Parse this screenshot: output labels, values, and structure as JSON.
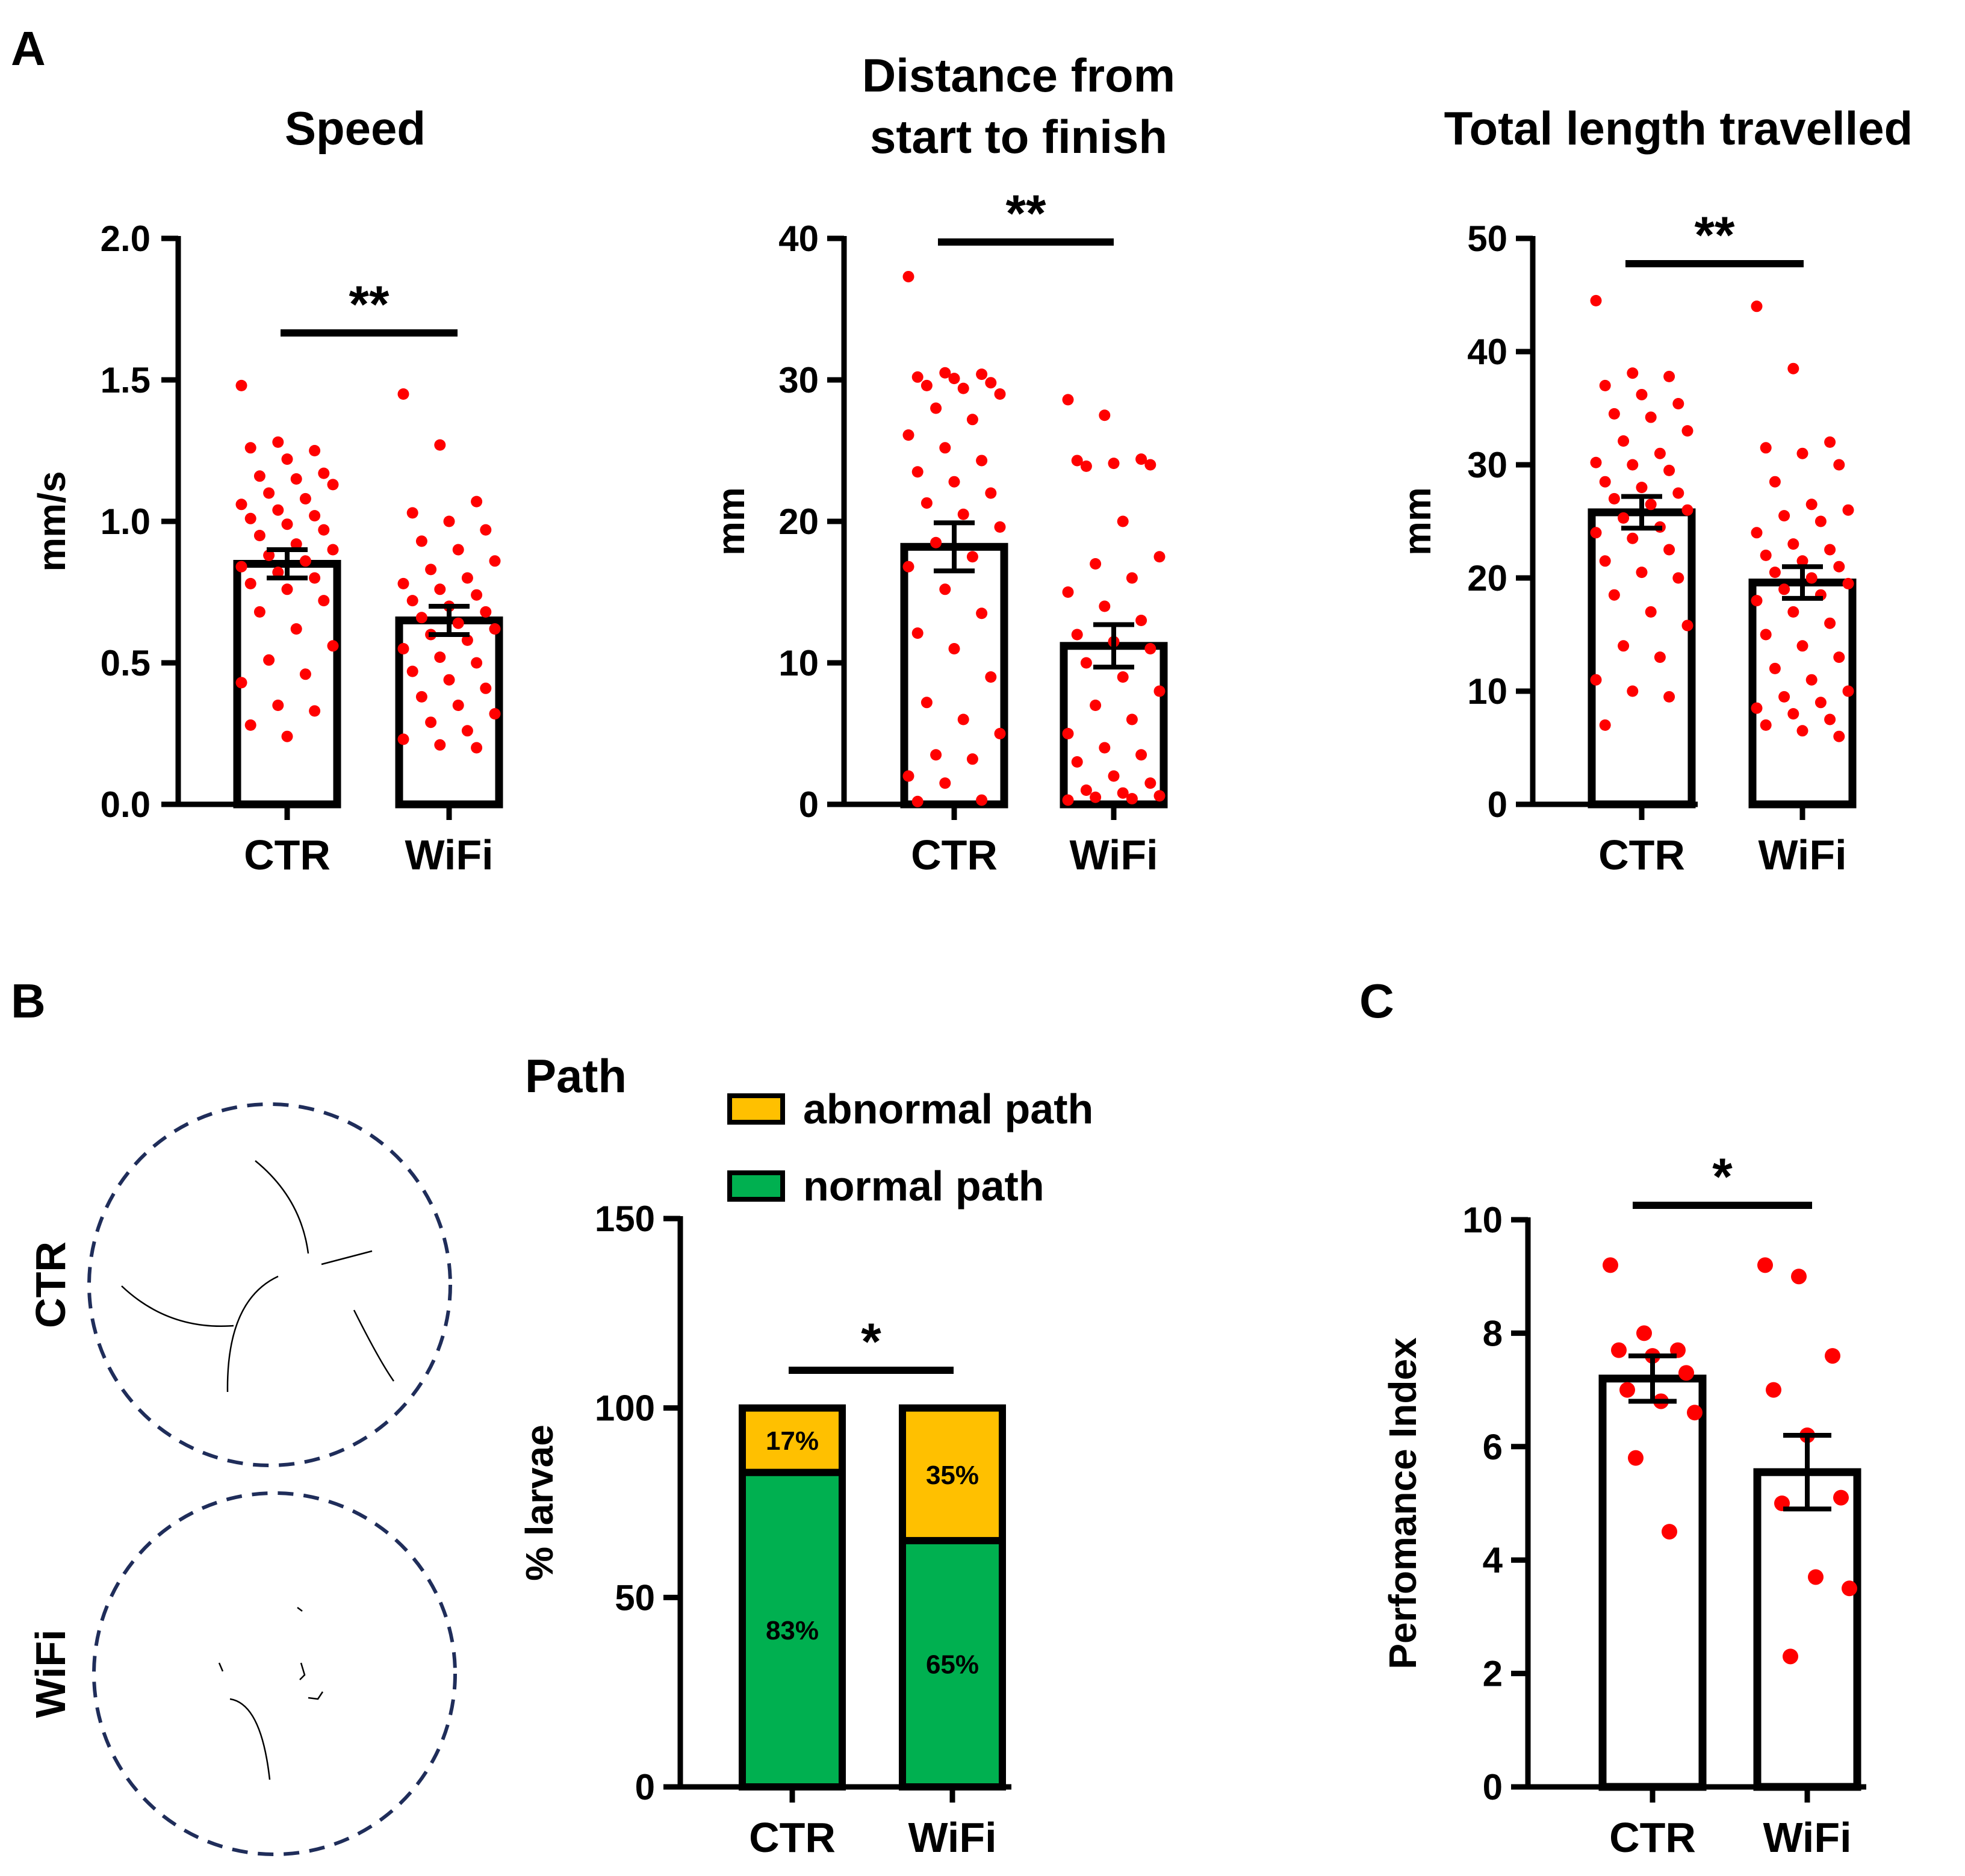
{
  "panels": {
    "A": "A",
    "B": "B",
    "C": "C"
  },
  "colors": {
    "dot": "#ff0000",
    "normal": "#00b050",
    "abnormal": "#ffc000",
    "dish": "#1f2d5a"
  },
  "chart_data": [
    {
      "id": "speed",
      "type": "bar",
      "title": [
        "Speed"
      ],
      "ylabel": "mm/s",
      "ylim": [
        0,
        2.0
      ],
      "ticks": [
        0,
        0.5,
        1.0,
        1.5,
        2.0
      ],
      "tick_labels": [
        "0.0",
        "0.5",
        "1.0",
        "1.5",
        "2.0"
      ],
      "categories": [
        "CTR",
        "WiFi"
      ],
      "values": [
        0.85,
        0.65
      ],
      "sem": [
        0.05,
        0.05
      ],
      "points": [
        [
          1.48,
          1.28,
          1.25,
          1.26,
          1.22,
          1.17,
          1.16,
          1.15,
          1.13,
          1.1,
          1.08,
          1.06,
          1.04,
          1.02,
          1.01,
          0.99,
          0.97,
          0.95,
          0.92,
          0.9,
          0.88,
          0.86,
          0.84,
          0.82,
          0.8,
          0.78,
          0.76,
          0.72,
          0.68,
          0.62,
          0.56,
          0.51,
          0.46,
          0.43,
          0.35,
          0.33,
          0.28,
          0.24
        ],
        [
          1.45,
          1.27,
          1.07,
          1.03,
          1.0,
          0.97,
          0.93,
          0.9,
          0.86,
          0.83,
          0.8,
          0.78,
          0.76,
          0.74,
          0.72,
          0.7,
          0.68,
          0.66,
          0.64,
          0.62,
          0.6,
          0.58,
          0.55,
          0.52,
          0.5,
          0.47,
          0.44,
          0.41,
          0.38,
          0.35,
          0.32,
          0.29,
          0.26,
          0.23,
          0.21,
          0.2
        ]
      ],
      "significance": "**"
    },
    {
      "id": "distance",
      "type": "bar",
      "title": [
        "Distance from",
        "start to finish"
      ],
      "ylabel": "mm",
      "ylim": [
        0,
        40
      ],
      "ticks": [
        0,
        10,
        20,
        30,
        40
      ],
      "tick_labels": [
        "0",
        "10",
        "20",
        "30",
        "40"
      ],
      "categories": [
        "CTR",
        "WiFi"
      ],
      "values": [
        18.2,
        11.2
      ],
      "sem": [
        1.7,
        1.5
      ],
      "points": [
        [
          37.3,
          30.5,
          30.4,
          30.2,
          30.1,
          29.8,
          29.6,
          29.4,
          29.0,
          28.0,
          27.2,
          26.1,
          25.2,
          24.3,
          23.5,
          22.8,
          22.0,
          21.3,
          20.5,
          19.6,
          18.5,
          17.5,
          16.8,
          15.2,
          13.5,
          12.1,
          11.0,
          9.0,
          7.2,
          6.0,
          5.0,
          3.5,
          3.2,
          2.0,
          1.5,
          0.3,
          0.2
        ],
        [
          28.6,
          27.5,
          24.4,
          24.3,
          24.1,
          24.0,
          23.9,
          20.0,
          17.5,
          17.0,
          16.0,
          15.0,
          14.0,
          13.0,
          12.0,
          11.5,
          11.0,
          10.0,
          9.0,
          8.0,
          7.0,
          6.0,
          5.0,
          4.0,
          3.5,
          3.0,
          2.0,
          1.5,
          1.0,
          0.8,
          0.6,
          0.5,
          0.4,
          0.3
        ]
      ],
      "significance": "**"
    },
    {
      "id": "length",
      "type": "bar",
      "title": [
        "Total length travelled"
      ],
      "ylabel": "mm",
      "ylim": [
        0,
        50
      ],
      "ticks": [
        0,
        10,
        20,
        30,
        40,
        50
      ],
      "tick_labels": [
        "0",
        "10",
        "20",
        "30",
        "40",
        "50"
      ],
      "categories": [
        "CTR",
        "WiFi"
      ],
      "values": [
        25.8,
        19.6
      ],
      "sem": [
        1.4,
        1.4
      ],
      "points": [
        [
          44.5,
          38.1,
          37.8,
          37.0,
          36.2,
          35.4,
          34.5,
          34.2,
          33.0,
          32.1,
          31.0,
          30.2,
          30.0,
          29.5,
          28.5,
          28.0,
          27.5,
          27.0,
          26.5,
          26.0,
          25.3,
          24.5,
          24.0,
          23.5,
          22.5,
          21.5,
          20.5,
          20.0,
          18.5,
          17.0,
          15.8,
          14.0,
          13.0,
          11.0,
          10.0,
          9.5,
          7.0
        ],
        [
          44.0,
          38.5,
          32.0,
          31.5,
          31.0,
          30.0,
          28.5,
          26.5,
          26.0,
          25.5,
          25.0,
          24.0,
          23.0,
          22.5,
          22.0,
          21.5,
          21.0,
          20.5,
          20.0,
          19.5,
          19.0,
          18.5,
          18.0,
          17.0,
          16.0,
          15.0,
          14.0,
          13.0,
          12.0,
          11.0,
          10.0,
          9.5,
          9.0,
          8.5,
          8.0,
          7.5,
          7.0,
          6.5,
          6.0
        ]
      ],
      "significance": "**"
    },
    {
      "id": "path",
      "type": "bar",
      "stacked": true,
      "title": [
        "Path"
      ],
      "ylabel": "% larvae",
      "ylim": [
        0,
        150
      ],
      "ticks": [
        0,
        50,
        100,
        150
      ],
      "tick_labels": [
        "0",
        "50",
        "100",
        "150"
      ],
      "categories": [
        "CTR",
        "WiFi"
      ],
      "series": [
        {
          "name": "normal path",
          "values": [
            83,
            65
          ],
          "labels": [
            "83%",
            "65%"
          ]
        },
        {
          "name": "abnormal path",
          "values": [
            17,
            35
          ],
          "labels": [
            "17%",
            "35%"
          ]
        }
      ],
      "legend": [
        "abnormal path",
        "normal path"
      ],
      "significance": "*"
    },
    {
      "id": "performance",
      "type": "bar",
      "title": [],
      "ylabel": "Perfomance Index",
      "ylim": [
        0,
        10
      ],
      "ticks": [
        0,
        2,
        4,
        6,
        8,
        10
      ],
      "tick_labels": [
        "0",
        "2",
        "4",
        "6",
        "8",
        "10"
      ],
      "categories": [
        "CTR",
        "WiFi"
      ],
      "values": [
        7.2,
        5.55
      ],
      "sem": [
        0.4,
        0.65
      ],
      "points": [
        [
          9.2,
          8.0,
          7.7,
          7.7,
          7.6,
          7.3,
          7.0,
          6.8,
          6.6,
          5.8,
          4.5
        ],
        [
          9.2,
          9.0,
          7.6,
          7.0,
          6.2,
          5.1,
          5.0,
          3.7,
          3.5,
          2.3
        ]
      ],
      "significance": "*"
    }
  ],
  "tracks": {
    "labels": [
      "CTR",
      "WiFi"
    ]
  }
}
